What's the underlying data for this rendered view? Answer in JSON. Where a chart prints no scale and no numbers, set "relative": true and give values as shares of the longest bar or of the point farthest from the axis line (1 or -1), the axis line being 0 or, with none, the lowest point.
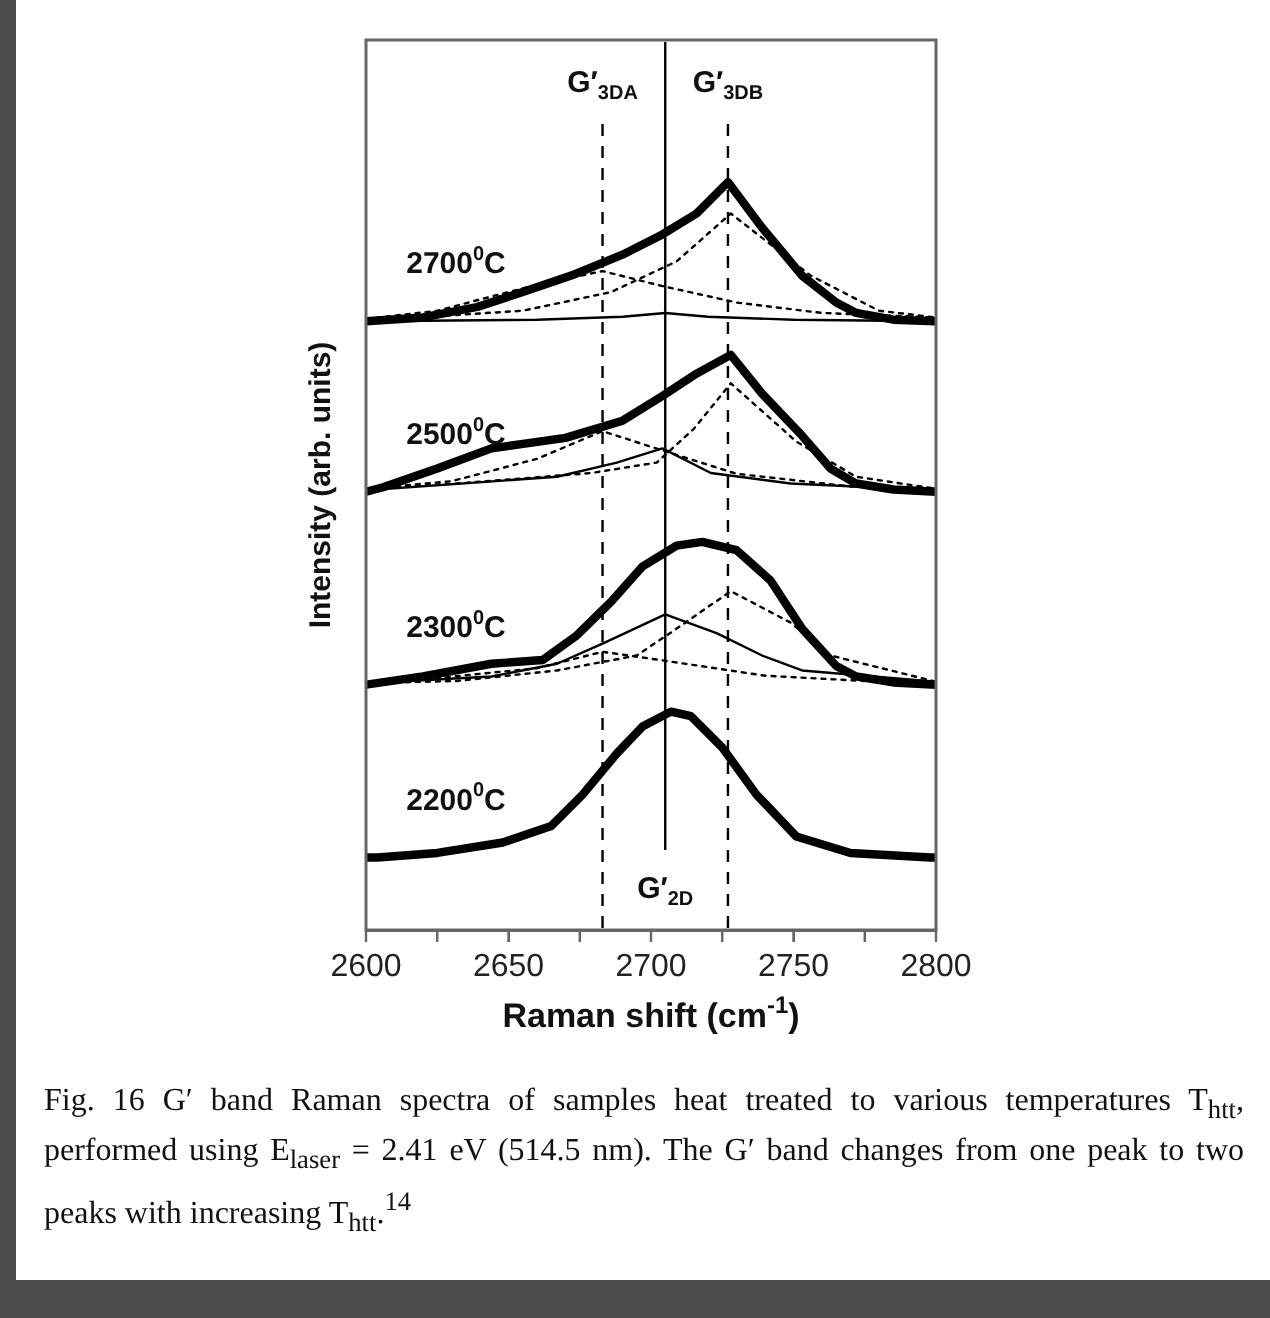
{
  "chart_data": {
    "type": "line",
    "relative": true,
    "xlabel": "Raman shift (cm$^{-1}$)",
    "ylabel": "Intensity (arb. units)",
    "xlim": [
      2600,
      2800
    ],
    "xticks": [
      2600,
      {
        "value": 2625,
        "label": null
      },
      2650,
      {
        "value": 2675,
        "label": null
      },
      2700,
      {
        "value": 2725,
        "label": null
      },
      2750,
      {
        "value": 2775,
        "label": null
      },
      2800
    ],
    "tick_labels": "x",
    "grid": false,
    "legend": false,
    "marker": "none",
    "line_style": "solid",
    "series": [
      {
        "name": "2700$^{0}$C",
        "color": "#000000",
        "x": [
          2600,
          2620,
          2639,
          2655,
          2672,
          2690,
          2704,
          2716,
          2727,
          2739,
          2753,
          2765,
          2772,
          2785,
          2800
        ],
        "values": [
          0.814,
          0.819,
          0.833,
          0.853,
          0.875,
          0.903,
          0.93,
          0.958,
          1.0,
          0.939,
          0.875,
          0.839,
          0.825,
          0.816,
          0.814
        ]
      },
      {
        "color": "#000000",
        "line_style": "dotted",
        "x": [
          2600,
          2630,
          2655,
          2686,
          2709,
          2728,
          2756,
          2780,
          2800
        ],
        "values": [
          0.817,
          0.822,
          0.828,
          0.853,
          0.894,
          0.958,
          0.875,
          0.828,
          0.819
        ]
      },
      {
        "color": "#000000",
        "line_style": "dotted",
        "x": [
          2600,
          2625,
          2658,
          2683,
          2704,
          2730,
          2760,
          2800
        ],
        "values": [
          0.817,
          0.828,
          0.861,
          0.881,
          0.861,
          0.839,
          0.825,
          0.819
        ]
      },
      {
        "color": "#000000",
        "line_style": "solid",
        "x": [
          2600,
          2660,
          2690,
          2705,
          2720,
          2750,
          2800
        ],
        "values": [
          0.814,
          0.816,
          0.82,
          0.825,
          0.82,
          0.816,
          0.814
        ]
      },
      {
        "name": "2500$^{0}$C",
        "color": "#000000",
        "x": [
          2600,
          2606,
          2625,
          2644,
          2670,
          2690,
          2704,
          2716,
          2728,
          2739,
          2753,
          2763,
          2772,
          2785,
          2800
        ],
        "values": [
          0.586,
          0.592,
          0.617,
          0.644,
          0.658,
          0.681,
          0.714,
          0.744,
          0.769,
          0.717,
          0.661,
          0.617,
          0.597,
          0.589,
          0.586
        ]
      },
      {
        "color": "#000000",
        "line_style": "dotted",
        "x": [
          2600,
          2632,
          2679,
          2702,
          2715,
          2728,
          2751,
          2772,
          2800
        ],
        "values": [
          0.59,
          0.597,
          0.611,
          0.625,
          0.67,
          0.731,
          0.653,
          0.606,
          0.59
        ]
      },
      {
        "color": "#000000",
        "line_style": "dotted",
        "x": [
          2600,
          2630,
          2660,
          2683,
          2705,
          2730,
          2770,
          2800
        ],
        "values": [
          0.59,
          0.6,
          0.63,
          0.667,
          0.64,
          0.61,
          0.593,
          0.59
        ]
      },
      {
        "color": "#000000",
        "line_style": "solid",
        "x": [
          2600,
          2667,
          2688,
          2704,
          2721,
          2749,
          2800
        ],
        "values": [
          0.588,
          0.606,
          0.625,
          0.644,
          0.611,
          0.597,
          0.588
        ]
      },
      {
        "name": "2300$^{0}$C",
        "color": "#000000",
        "x": [
          2600,
          2620,
          2644,
          2662,
          2674,
          2686,
          2697,
          2709,
          2718,
          2730,
          2742,
          2753,
          2765,
          2772,
          2785,
          2800
        ],
        "values": [
          0.328,
          0.339,
          0.356,
          0.361,
          0.394,
          0.439,
          0.486,
          0.514,
          0.519,
          0.508,
          0.467,
          0.403,
          0.353,
          0.339,
          0.331,
          0.328
        ]
      },
      {
        "color": "#000000",
        "line_style": "dotted",
        "x": [
          2600,
          2632,
          2667,
          2695,
          2709,
          2728,
          2749,
          2763,
          2800
        ],
        "values": [
          0.33,
          0.333,
          0.347,
          0.367,
          0.403,
          0.453,
          0.411,
          0.367,
          0.332
        ]
      },
      {
        "color": "#000000",
        "line_style": "dotted",
        "x": [
          2600,
          2620,
          2660,
          2683,
          2705,
          2740,
          2780,
          2800
        ],
        "values": [
          0.33,
          0.335,
          0.35,
          0.372,
          0.36,
          0.34,
          0.332,
          0.33
        ]
      },
      {
        "color": "#000000",
        "line_style": "solid",
        "x": [
          2600,
          2644,
          2667,
          2683,
          2705,
          2723,
          2739,
          2753,
          2800
        ],
        "values": [
          0.33,
          0.339,
          0.356,
          0.383,
          0.422,
          0.397,
          0.367,
          0.347,
          0.332
        ]
      },
      {
        "name": "2200$^{0}$C",
        "color": "#000000",
        "x": [
          2600,
          2604,
          2625,
          2648,
          2665,
          2676,
          2688,
          2697,
          2707,
          2714,
          2725,
          2737,
          2751,
          2770,
          2798,
          2800
        ],
        "values": [
          0.097,
          0.097,
          0.103,
          0.117,
          0.139,
          0.181,
          0.236,
          0.272,
          0.292,
          0.286,
          0.244,
          0.181,
          0.125,
          0.103,
          0.097,
          0.097
        ]
      }
    ],
    "ref_lines": [
      {
        "axis": "x",
        "value": 2683,
        "label": "G′$_{3DA}$",
        "color": "#000000",
        "line_style": "dashed"
      },
      {
        "axis": "x",
        "value": 2705,
        "label": "G′$_{2D}$",
        "color": "#000000",
        "line_style": "solid"
      },
      {
        "axis": "x",
        "value": 2727,
        "label": "G′$_{3DB}$",
        "color": "#000000",
        "line_style": "dashed"
      }
    ],
    "annotations": [
      "Fig. 16  G′ band Raman spectra of samples heat treated to various temperatures T$_{htt}$, performed using E$_{laser}$ = 2.41 eV (514.5 nm). The G′ band changes from one peak to two peaks with increasing T$_{htt}$.$^{14}$"
    ]
  }
}
